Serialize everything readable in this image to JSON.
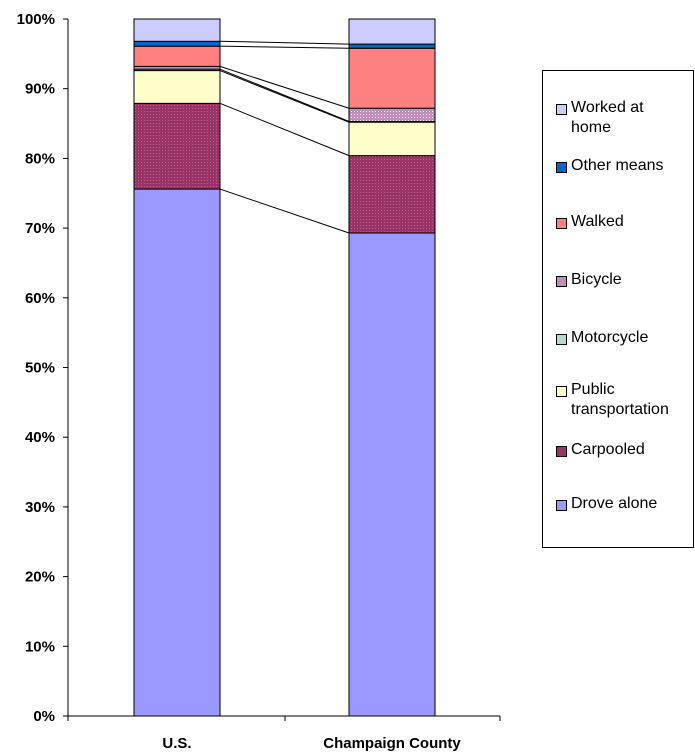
{
  "chart_data": {
    "type": "bar",
    "stacked": true,
    "percent": true,
    "categories": [
      "U.S.",
      "Champaign County"
    ],
    "series": [
      {
        "name": "Drove alone",
        "color": "#9999ff",
        "values": [
          75.6,
          69.3
        ]
      },
      {
        "name": "Carpooled",
        "color": "#993366",
        "values": [
          12.3,
          11.1
        ]
      },
      {
        "name": "Public transportation",
        "color": "#ffffcc",
        "values": [
          4.7,
          4.8
        ]
      },
      {
        "name": "Motorcycle",
        "color": "#b3d9cf",
        "values": [
          0.2,
          0.1
        ]
      },
      {
        "name": "Bicycle",
        "color": "#c68cba",
        "values": [
          0.4,
          1.9
        ]
      },
      {
        "name": "Walked",
        "color": "#ff8080",
        "values": [
          2.9,
          8.6
        ]
      },
      {
        "name": "Other means",
        "color": "#0066cc",
        "values": [
          0.7,
          0.6
        ]
      },
      {
        "name": "Worked at home",
        "color": "#ccccff",
        "values": [
          3.2,
          3.6
        ]
      }
    ],
    "yticks": [
      "0%",
      "10%",
      "20%",
      "30%",
      "40%",
      "50%",
      "60%",
      "70%",
      "80%",
      "90%",
      "100%"
    ],
    "ylim": [
      0,
      100
    ],
    "legend_position": "right",
    "grid": false
  },
  "legend": {
    "items": [
      {
        "label": "Worked at\nhome",
        "color": "#ccccff"
      },
      {
        "label": "Other means",
        "color": "#0066cc"
      },
      {
        "label": "Walked",
        "color": "#ff8080"
      },
      {
        "label": "Bicycle",
        "color": "#c68cba"
      },
      {
        "label": "Motorcycle",
        "color": "#b3d9cf"
      },
      {
        "label": "Public\ntransportation",
        "color": "#ffffcc"
      },
      {
        "label": "Carpooled",
        "color": "#993366"
      },
      {
        "label": "Drove alone",
        "color": "#9999ff"
      }
    ]
  }
}
